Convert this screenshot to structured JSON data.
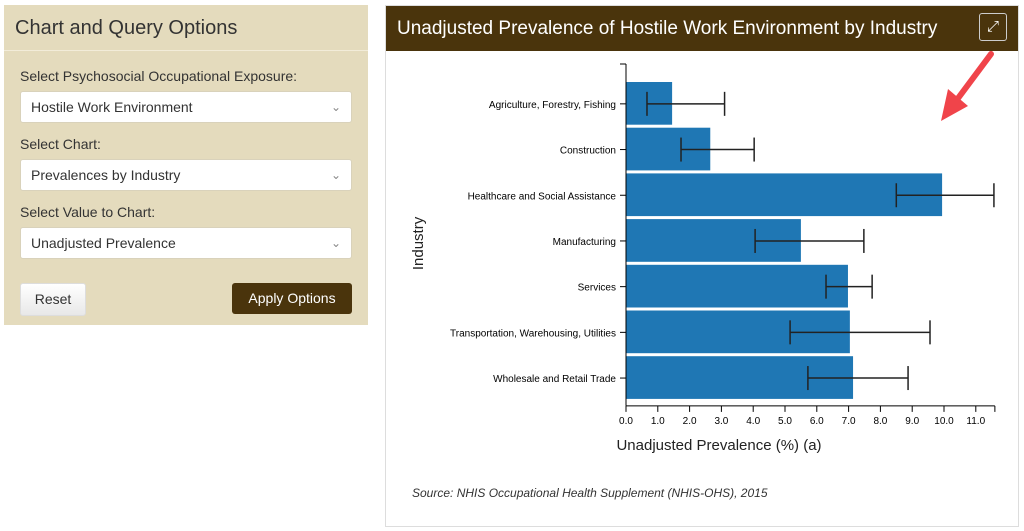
{
  "options": {
    "title": "Chart and Query Options",
    "exposure_label": "Select Psychosocial Occupational Exposure:",
    "exposure_value": "Hostile Work Environment",
    "chart_label": "Select Chart:",
    "chart_value": "Prevalences by Industry",
    "value_label": "Select Value to Chart:",
    "value_value": "Unadjusted Prevalence",
    "reset": "Reset",
    "apply": "Apply Options"
  },
  "panel": {
    "title": "Unadjusted Prevalence of Hostile Work Environment by Industry",
    "expand_icon": "expand-arrows-icon",
    "source": "Source: NHIS Occupational Health Supplement (NHIS-OHS), 2015"
  },
  "colors": {
    "bar": "#1f77b4",
    "header": "#4a340c",
    "panel_bg": "#e4dbbd",
    "arrow": "#f0444a"
  },
  "chart_data": {
    "type": "bar",
    "orientation": "horizontal",
    "xlabel": "Unadjusted Prevalence (%) (a)",
    "ylabel": "Industry",
    "xlim": [
      0,
      11.6
    ],
    "xticks": [
      "0.0",
      "1.0",
      "2.0",
      "3.0",
      "4.0",
      "5.0",
      "6.0",
      "7.0",
      "8.0",
      "9.0",
      "10.0",
      "11.0"
    ],
    "categories": [
      "Agriculture, Forestry, Fishing",
      "Construction",
      "Healthcare and Social Assistance",
      "Manufacturing",
      "Services",
      "Transportation, Warehousing, Utilities",
      "Wholesale and Retail Trade"
    ],
    "values": [
      1.45,
      2.65,
      9.94,
      5.5,
      6.98,
      7.04,
      7.14
    ],
    "ci_low": [
      0.66,
      1.73,
      8.5,
      4.06,
      6.29,
      5.16,
      5.72
    ],
    "ci_high": [
      3.1,
      4.03,
      11.57,
      7.48,
      7.74,
      9.56,
      8.87
    ],
    "annotation": "red arrow pointing to Healthcare and Social Assistance bar"
  }
}
